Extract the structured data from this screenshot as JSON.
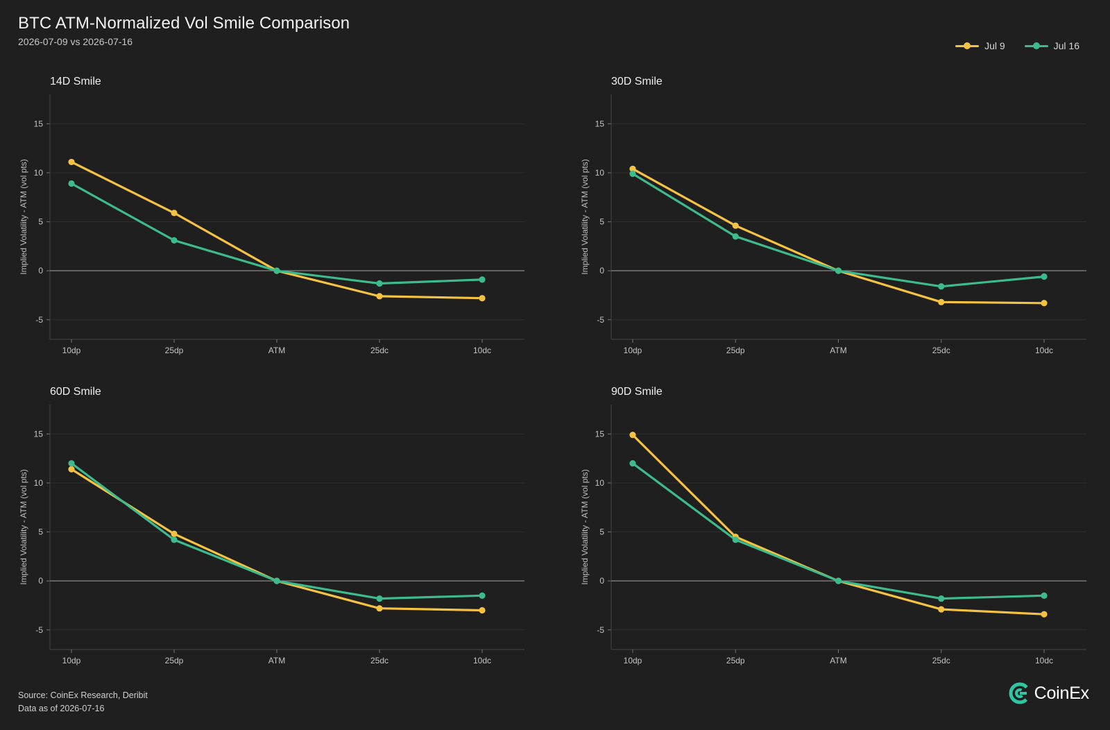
{
  "title": "BTC ATM-Normalized Vol Smile Comparison",
  "subtitle": "2026-07-09 vs 2026-07-16",
  "colors": {
    "background": "#1f1f1f",
    "jul9": "#f5c242",
    "jul16": "#3dbb8c",
    "grid": "#2e2e2e",
    "zero_line": "#8a8a8a"
  },
  "legend": {
    "position": "top-right",
    "items": [
      {
        "label": "Jul 9",
        "color": "#f5c242"
      },
      {
        "label": "Jul 16",
        "color": "#3dbb8c"
      }
    ]
  },
  "chart_data": [
    {
      "type": "line",
      "title": "14D Smile",
      "xlabel": "",
      "ylabel": "Implied Volatility - ATM (vol pts)",
      "categories": [
        "10dp",
        "25dp",
        "ATM",
        "25dc",
        "10dc"
      ],
      "ylim": [
        -7,
        18
      ],
      "yticks": [
        -5,
        0,
        5,
        10,
        15
      ],
      "grid": true,
      "series": [
        {
          "name": "Jul 9",
          "color": "#f5c242",
          "values": [
            11.1,
            5.9,
            0,
            -2.6,
            -2.8
          ]
        },
        {
          "name": "Jul 16",
          "color": "#3dbb8c",
          "values": [
            8.9,
            3.1,
            0,
            -1.3,
            -0.9
          ]
        }
      ]
    },
    {
      "type": "line",
      "title": "30D Smile",
      "xlabel": "",
      "ylabel": "Implied Volatility - ATM (vol pts)",
      "categories": [
        "10dp",
        "25dp",
        "ATM",
        "25dc",
        "10dc"
      ],
      "ylim": [
        -7,
        18
      ],
      "yticks": [
        -5,
        0,
        5,
        10,
        15
      ],
      "grid": true,
      "series": [
        {
          "name": "Jul 9",
          "color": "#f5c242",
          "values": [
            10.4,
            4.6,
            0,
            -3.2,
            -3.3
          ]
        },
        {
          "name": "Jul 16",
          "color": "#3dbb8c",
          "values": [
            9.9,
            3.5,
            0,
            -1.6,
            -0.6
          ]
        }
      ]
    },
    {
      "type": "line",
      "title": "60D Smile",
      "xlabel": "",
      "ylabel": "Implied Volatility - ATM (vol pts)",
      "categories": [
        "10dp",
        "25dp",
        "ATM",
        "25dc",
        "10dc"
      ],
      "ylim": [
        -7,
        18
      ],
      "yticks": [
        -5,
        0,
        5,
        10,
        15
      ],
      "grid": true,
      "series": [
        {
          "name": "Jul 9",
          "color": "#f5c242",
          "values": [
            11.4,
            4.8,
            0,
            -2.8,
            -3.0
          ]
        },
        {
          "name": "Jul 16",
          "color": "#3dbb8c",
          "values": [
            12.0,
            4.2,
            0,
            -1.8,
            -1.5
          ]
        }
      ]
    },
    {
      "type": "line",
      "title": "90D Smile",
      "xlabel": "",
      "ylabel": "Implied Volatility - ATM (vol pts)",
      "categories": [
        "10dp",
        "25dp",
        "ATM",
        "25dc",
        "10dc"
      ],
      "ylim": [
        -7,
        18
      ],
      "yticks": [
        -5,
        0,
        5,
        10,
        15
      ],
      "grid": true,
      "series": [
        {
          "name": "Jul 9",
          "color": "#f5c242",
          "values": [
            14.9,
            4.5,
            0,
            -2.9,
            -3.4
          ]
        },
        {
          "name": "Jul 16",
          "color": "#3dbb8c",
          "values": [
            12.0,
            4.2,
            0,
            -1.8,
            -1.5
          ]
        }
      ]
    }
  ],
  "footer": {
    "source": "Source: CoinEx Research, Deribit",
    "as_of": "Data as of 2026-07-16"
  },
  "logo": {
    "text": "CoinEx",
    "icon": "coinex-logo-icon",
    "color": "#2fc6a4"
  }
}
